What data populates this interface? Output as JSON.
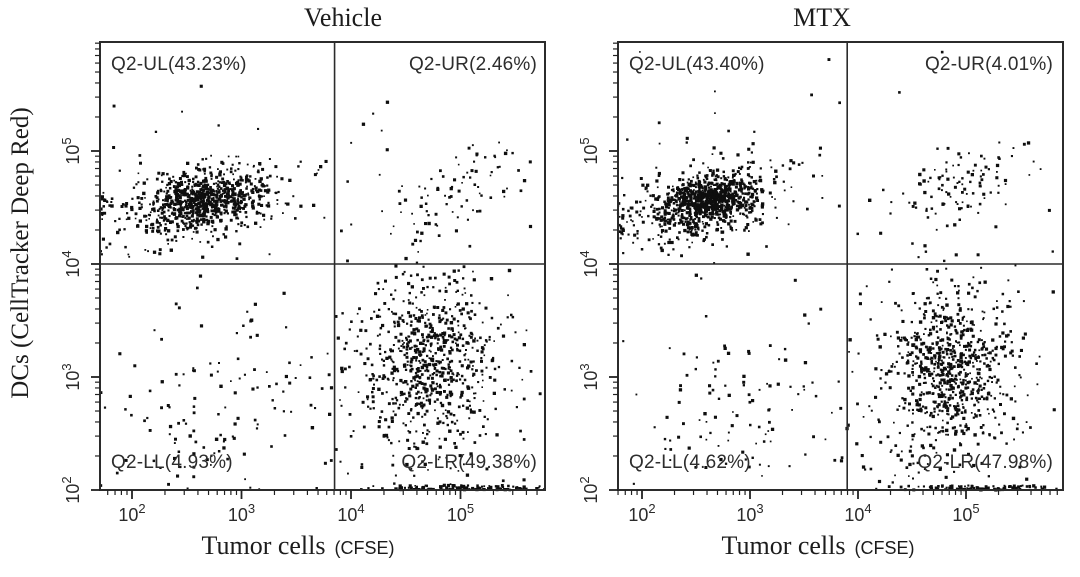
{
  "axis_labels": {
    "x_main": "Tumor cells",
    "x_sub": "(CFSE)",
    "y": "DCs (CellTracker Deep Red)"
  },
  "colors": {
    "background": "#ffffff",
    "frame": "#2b2b2b",
    "tick": "#222222",
    "dots": "#0e0e0e",
    "tick_label": "#2a2a2a",
    "quadrant_label": "#2d2d2d"
  },
  "chart_data": [
    {
      "type": "scatter",
      "title": "Vehicle",
      "xlabel": "Tumor cells (CFSE)",
      "ylabel": "DCs (CellTracker Deep Red)",
      "x_scale": "log10",
      "y_scale": "log10",
      "x_tick_exponents": [
        2,
        3,
        4,
        5
      ],
      "y_tick_exponents": [
        2,
        3,
        4,
        5
      ],
      "xlim_log10": [
        1.71,
        5.77
      ],
      "ylim_log10": [
        2.0,
        5.97
      ],
      "gate_log10": {
        "x": 3.85,
        "y": 4.0
      },
      "quadrants": {
        "UL": {
          "label": "Q2-UL(43.23%)",
          "percent": 43.23
        },
        "UR": {
          "label": "Q2-UR(2.46%)",
          "percent": 2.46
        },
        "LL": {
          "label": "Q2-LL(4.93%)",
          "percent": 4.93
        },
        "LR": {
          "label": "Q2-LR(49.38%)",
          "percent": 49.38
        }
      },
      "seed": 20240117,
      "clusters": [
        {
          "name": "UL-core",
          "count": 520,
          "cx": 2.65,
          "cy": 4.56,
          "sx": 0.25,
          "sy": 0.11,
          "rho": 0.35,
          "clamp": "left"
        },
        {
          "name": "UL-halo",
          "count": 400,
          "cx": 2.6,
          "cy": 4.55,
          "sx": 0.46,
          "sy": 0.21,
          "rho": 0.3,
          "clamp": "left"
        },
        {
          "name": "UR",
          "count": 80,
          "cx": 5.02,
          "cy": 4.7,
          "sx": 0.33,
          "sy": 0.24,
          "rho": 0.55
        },
        {
          "name": "LL",
          "count": 118,
          "cx": 2.75,
          "cy": 2.75,
          "sx": 0.5,
          "sy": 0.45,
          "rho": 0.1,
          "clamp": "left"
        },
        {
          "name": "LR-core",
          "count": 480,
          "cx": 4.72,
          "cy": 3.12,
          "sx": 0.27,
          "sy": 0.36,
          "rho": 0.05
        },
        {
          "name": "LR-halo",
          "count": 330,
          "cx": 4.65,
          "cy": 3.0,
          "sx": 0.46,
          "sy": 0.58,
          "rho": 0.1
        },
        {
          "name": "LR-floor",
          "count": 120,
          "cx": 5.1,
          "sx": 0.45,
          "edge": "bottom"
        },
        {
          "name": "background",
          "count": 30,
          "uniform": true
        }
      ]
    },
    {
      "type": "scatter",
      "title": "MTX",
      "xlabel": "Tumor cells (CFSE)",
      "ylabel": "DCs (CellTracker Deep Red)",
      "x_scale": "log10",
      "y_scale": "log10",
      "x_tick_exponents": [
        2,
        3,
        4,
        5
      ],
      "y_tick_exponents": [
        2,
        3,
        4,
        5
      ],
      "xlim_log10": [
        1.78,
        5.9
      ],
      "ylim_log10": [
        2.0,
        5.97
      ],
      "gate_log10": {
        "x": 3.9,
        "y": 4.0
      },
      "quadrants": {
        "UL": {
          "label": "Q2-UL(43.40%)",
          "percent": 43.4
        },
        "UR": {
          "label": "Q2-UR(4.01%)",
          "percent": 4.01
        },
        "LL": {
          "label": "Q2-LL(4.62%)",
          "percent": 4.62
        },
        "LR": {
          "label": "Q2-LR(47.98%)",
          "percent": 47.98
        }
      },
      "seed": 987654,
      "clusters": [
        {
          "name": "UL-core",
          "count": 640,
          "cx": 2.6,
          "cy": 4.56,
          "sx": 0.2,
          "sy": 0.1,
          "rho": 0.3,
          "clamp": "left"
        },
        {
          "name": "UL-halo",
          "count": 420,
          "cx": 2.57,
          "cy": 4.54,
          "sx": 0.42,
          "sy": 0.2,
          "rho": 0.3,
          "clamp": "left"
        },
        {
          "name": "UR",
          "count": 105,
          "cx": 4.95,
          "cy": 4.7,
          "sx": 0.3,
          "sy": 0.2,
          "rho": 0.35
        },
        {
          "name": "LL",
          "count": 95,
          "cx": 2.8,
          "cy": 2.68,
          "sx": 0.42,
          "sy": 0.38,
          "rho": 0.1,
          "clamp": "left"
        },
        {
          "name": "LR-core",
          "count": 520,
          "cx": 4.85,
          "cy": 3.1,
          "sx": 0.25,
          "sy": 0.33,
          "rho": 0.05
        },
        {
          "name": "LR-halo",
          "count": 340,
          "cx": 4.8,
          "cy": 3.0,
          "sx": 0.44,
          "sy": 0.55,
          "rho": 0.1
        },
        {
          "name": "LR-floor",
          "count": 100,
          "cx": 5.15,
          "sx": 0.4,
          "edge": "bottom"
        },
        {
          "name": "background",
          "count": 28,
          "uniform": true
        }
      ]
    }
  ]
}
